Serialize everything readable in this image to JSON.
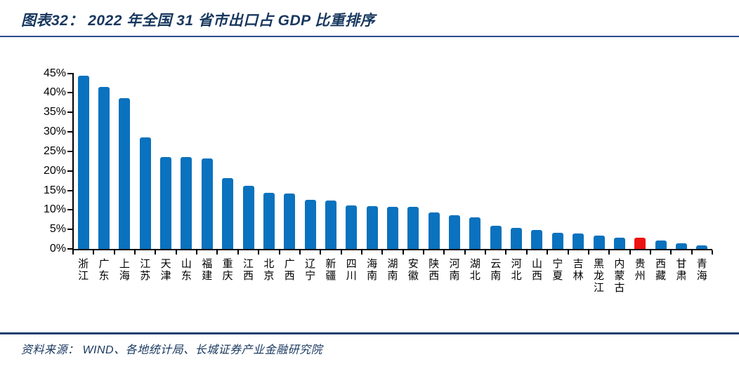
{
  "header": {
    "title": "图表32： 2022 年全国 31 省市出口占 GDP 比重排序"
  },
  "footer": {
    "source": "资料来源： WIND、各地统计局、长城证券产业金融研究院"
  },
  "colors": {
    "bar_blue": "#0a72be",
    "highlight_red": "#ee1111",
    "title_navy": "#17375e",
    "rule_top_blue": "#2a4a8f",
    "rule_bottom_blue": "#20406e",
    "axis_black": "#000000"
  },
  "chart_data": {
    "type": "bar",
    "title": "2022 年全国 31 省市出口占 GDP 比重排序",
    "xlabel": "",
    "ylabel": "",
    "ylim": [
      0,
      45
    ],
    "ytick_step": 5,
    "ytick_suffix": "%",
    "grid": false,
    "legend": "none",
    "sort_order": "descending",
    "categories": [
      "浙江",
      "广东",
      "上海",
      "江苏",
      "天津",
      "山东",
      "福建",
      "重庆",
      "江西",
      "北京",
      "广西",
      "辽宁",
      "新疆",
      "四川",
      "海南",
      "湖南",
      "安徽",
      "陕西",
      "河南",
      "湖北",
      "云南",
      "河北",
      "山西",
      "宁夏",
      "吉林",
      "黑龙江",
      "内蒙古",
      "贵州",
      "西藏",
      "甘肃",
      "青海"
    ],
    "values": [
      44.4,
      41.5,
      38.6,
      28.6,
      23.6,
      23.5,
      23.1,
      18.2,
      16.1,
      14.4,
      14.2,
      12.6,
      12.4,
      11.2,
      10.9,
      10.8,
      10.7,
      9.3,
      8.7,
      8.0,
      5.9,
      5.4,
      4.9,
      4.2,
      4.0,
      3.5,
      2.9,
      2.8,
      2.2,
      1.4,
      0.9
    ],
    "bar_color": "#0a72be",
    "highlight": {
      "category": "贵州",
      "color": "#ee1111"
    }
  }
}
